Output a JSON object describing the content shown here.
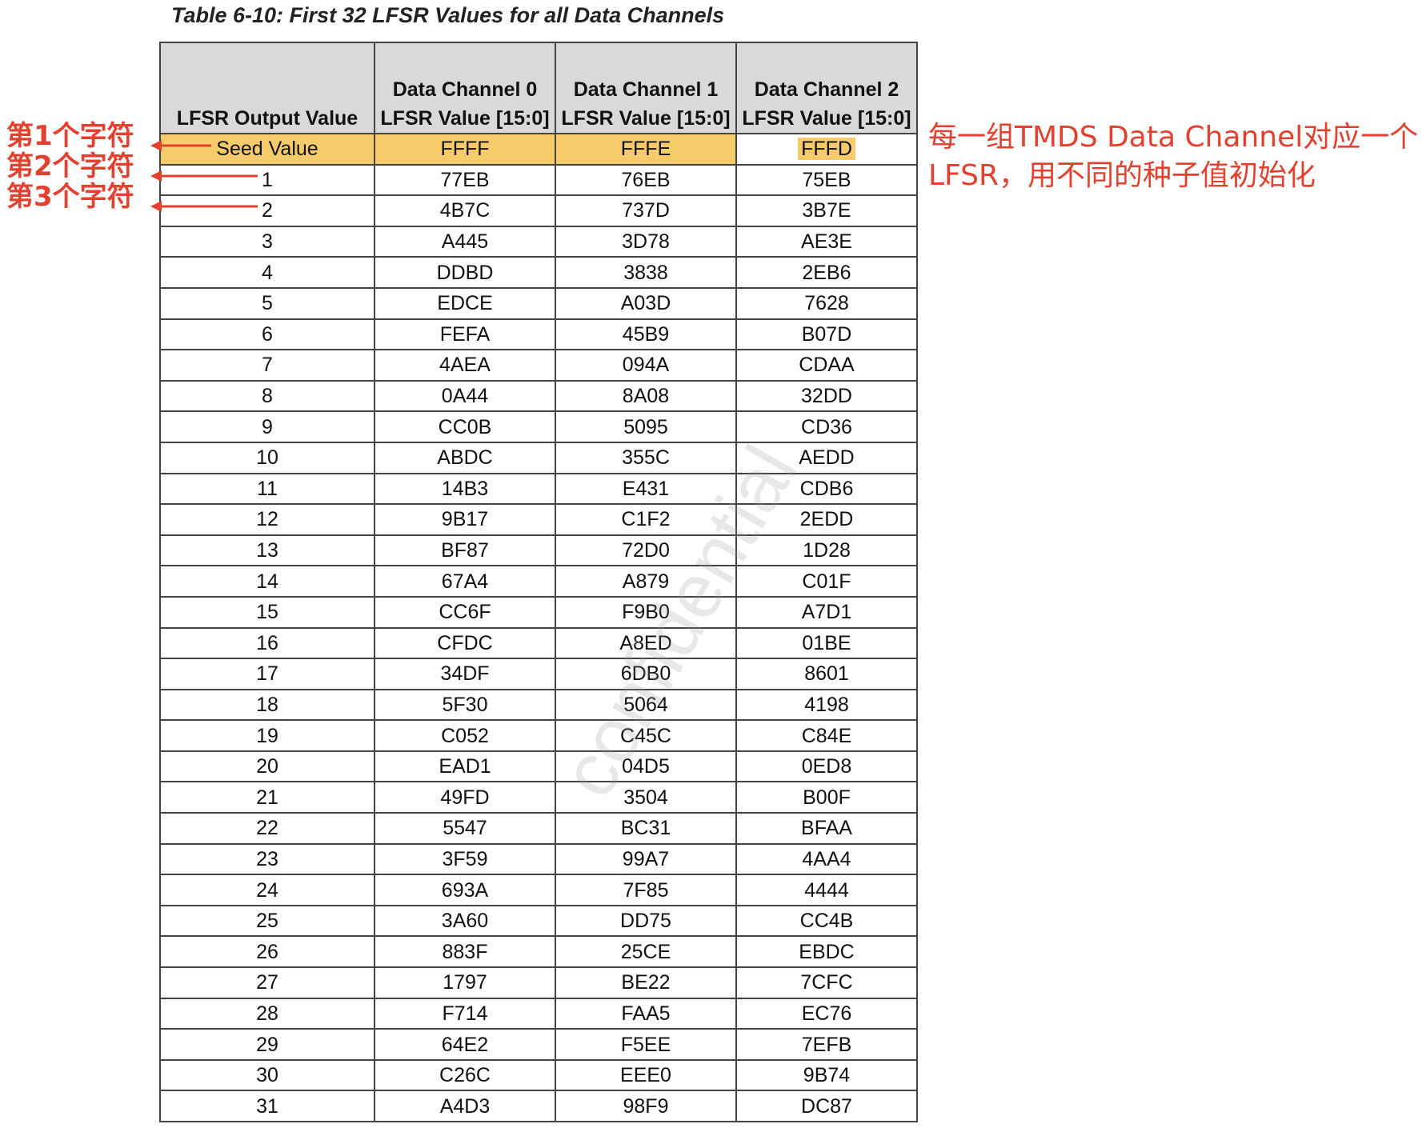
{
  "caption": "Table 6-10: First 32 LFSR Values for all Data Channels",
  "headers": [
    "LFSR Output Value",
    "Data Channel 0 LFSR Value [15:0]",
    "Data Channel 1 LFSR Value [15:0]",
    "Data Channel 2 LFSR Value [15:0]"
  ],
  "rows": [
    [
      "Seed Value",
      "FFFF",
      "FFFE",
      "FFFD"
    ],
    [
      "1",
      "77EB",
      "76EB",
      "75EB"
    ],
    [
      "2",
      "4B7C",
      "737D",
      "3B7E"
    ],
    [
      "3",
      "A445",
      "3D78",
      "AE3E"
    ],
    [
      "4",
      "DDBD",
      "3838",
      "2EB6"
    ],
    [
      "5",
      "EDCE",
      "A03D",
      "7628"
    ],
    [
      "6",
      "FEFA",
      "45B9",
      "B07D"
    ],
    [
      "7",
      "4AEA",
      "094A",
      "CDAA"
    ],
    [
      "8",
      "0A44",
      "8A08",
      "32DD"
    ],
    [
      "9",
      "CC0B",
      "5095",
      "CD36"
    ],
    [
      "10",
      "ABDC",
      "355C",
      "AEDD"
    ],
    [
      "11",
      "14B3",
      "E431",
      "CDB6"
    ],
    [
      "12",
      "9B17",
      "C1F2",
      "2EDD"
    ],
    [
      "13",
      "BF87",
      "72D0",
      "1D28"
    ],
    [
      "14",
      "67A4",
      "A879",
      "C01F"
    ],
    [
      "15",
      "CC6F",
      "F9B0",
      "A7D1"
    ],
    [
      "16",
      "CFDC",
      "A8ED",
      "01BE"
    ],
    [
      "17",
      "34DF",
      "6DB0",
      "8601"
    ],
    [
      "18",
      "5F30",
      "5064",
      "4198"
    ],
    [
      "19",
      "C052",
      "C45C",
      "C84E"
    ],
    [
      "20",
      "EAD1",
      "04D5",
      "0ED8"
    ],
    [
      "21",
      "49FD",
      "3504",
      "B00F"
    ],
    [
      "22",
      "5547",
      "BC31",
      "BFAA"
    ],
    [
      "23",
      "3F59",
      "99A7",
      "4AA4"
    ],
    [
      "24",
      "693A",
      "7F85",
      "4444"
    ],
    [
      "25",
      "3A60",
      "DD75",
      "CC4B"
    ],
    [
      "26",
      "883F",
      "25CE",
      "EBDC"
    ],
    [
      "27",
      "1797",
      "BE22",
      "7CFC"
    ],
    [
      "28",
      "F714",
      "FAA5",
      "EC76"
    ],
    [
      "29",
      "64E2",
      "F5EE",
      "7EFB"
    ],
    [
      "30",
      "C26C",
      "EEE0",
      "9B74"
    ],
    [
      "31",
      "A4D3",
      "98F9",
      "DC87"
    ]
  ],
  "annotations": {
    "left": [
      "第1个字符",
      "第2个字符",
      "第3个字符"
    ],
    "right_line1": "每一组TMDS Data Channel对应一个",
    "right_line2": "LFSR，用不同的种子值初始化"
  },
  "watermark": "confidential",
  "colors": {
    "highlight": "#f6cc6a",
    "annotation": "#e2412f",
    "header_bg": "#d9d9d9"
  }
}
